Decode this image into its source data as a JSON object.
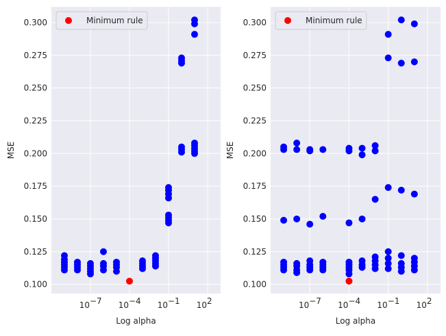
{
  "chart_data": [
    {
      "type": "scatter",
      "xlabel": "Log alpha",
      "ylabel": "MSE",
      "xscale": "log",
      "xlim": [
        1e-10,
        1000
      ],
      "ylim": [
        0.093,
        0.312
      ],
      "grid": true,
      "legend_position": "top-left",
      "x_ticks": [
        {
          "value": 1e-07,
          "base": "10",
          "exp": "−7"
        },
        {
          "value": 0.0001,
          "base": "10",
          "exp": "−4"
        },
        {
          "value": 0.1,
          "base": "10",
          "exp": "−1"
        },
        {
          "value": 100,
          "base": "10",
          "exp": "2"
        }
      ],
      "y_ticks": [
        "0.100",
        "0.125",
        "0.150",
        "0.175",
        "0.200",
        "0.225",
        "0.250",
        "0.275",
        "0.300"
      ],
      "series": [
        {
          "name": "",
          "color": "#0000ff",
          "points": [
            [
              1e-09,
              0.111
            ],
            [
              1e-09,
              0.113
            ],
            [
              1e-09,
              0.115
            ],
            [
              1e-09,
              0.117
            ],
            [
              1e-09,
              0.119
            ],
            [
              1e-09,
              0.122
            ],
            [
              1e-08,
              0.111
            ],
            [
              1e-08,
              0.113
            ],
            [
              1e-08,
              0.115
            ],
            [
              1e-08,
              0.117
            ],
            [
              1e-07,
              0.108
            ],
            [
              1e-07,
              0.11
            ],
            [
              1e-07,
              0.112
            ],
            [
              1e-07,
              0.114
            ],
            [
              1e-07,
              0.116
            ],
            [
              1e-06,
              0.111
            ],
            [
              1e-06,
              0.114
            ],
            [
              1e-06,
              0.116
            ],
            [
              1e-06,
              0.125
            ],
            [
              1e-05,
              0.11
            ],
            [
              1e-05,
              0.113
            ],
            [
              1e-05,
              0.115
            ],
            [
              1e-05,
              0.117
            ],
            [
              0.001,
              0.112
            ],
            [
              0.001,
              0.114
            ],
            [
              0.001,
              0.116
            ],
            [
              0.001,
              0.118
            ],
            [
              0.01,
              0.114
            ],
            [
              0.01,
              0.116
            ],
            [
              0.01,
              0.118
            ],
            [
              0.01,
              0.12
            ],
            [
              0.01,
              0.122
            ],
            [
              0.1,
              0.147
            ],
            [
              0.1,
              0.149
            ],
            [
              0.1,
              0.151
            ],
            [
              0.1,
              0.153
            ],
            [
              0.1,
              0.166
            ],
            [
              0.1,
              0.169
            ],
            [
              0.1,
              0.172
            ],
            [
              0.1,
              0.174
            ],
            [
              1,
              0.201
            ],
            [
              1,
              0.203
            ],
            [
              1,
              0.205
            ],
            [
              1,
              0.269
            ],
            [
              1,
              0.271
            ],
            [
              1,
              0.273
            ],
            [
              10,
              0.2
            ],
            [
              10,
              0.202
            ],
            [
              10,
              0.204
            ],
            [
              10,
              0.206
            ],
            [
              10,
              0.208
            ],
            [
              10,
              0.291
            ],
            [
              10,
              0.299
            ],
            [
              10,
              0.302
            ]
          ]
        },
        {
          "name": "Minimum rule",
          "color": "#ff0000",
          "points": [
            [
              0.0001,
              0.1025
            ]
          ]
        }
      ]
    },
    {
      "type": "scatter",
      "xlabel": "Log alpha",
      "ylabel": "MSE",
      "xscale": "log",
      "xlim": [
        1e-10,
        1000
      ],
      "ylim": [
        0.093,
        0.312
      ],
      "grid": true,
      "legend_position": "top-left",
      "x_ticks": [
        {
          "value": 1e-07,
          "base": "10",
          "exp": "−7"
        },
        {
          "value": 0.0001,
          "base": "10",
          "exp": "−4"
        },
        {
          "value": 0.1,
          "base": "10",
          "exp": "−1"
        },
        {
          "value": 100,
          "base": "10",
          "exp": "2"
        }
      ],
      "y_ticks": [
        "0.100",
        "0.125",
        "0.150",
        "0.175",
        "0.200",
        "0.225",
        "0.250",
        "0.275",
        "0.300"
      ],
      "series": [
        {
          "name": "",
          "color": "#0000ff",
          "points": [
            [
              1e-09,
              0.111
            ],
            [
              1e-09,
              0.113
            ],
            [
              1e-09,
              0.115
            ],
            [
              1e-09,
              0.117
            ],
            [
              1e-09,
              0.149
            ],
            [
              1e-09,
              0.203
            ],
            [
              1e-09,
              0.205
            ],
            [
              1e-08,
              0.109
            ],
            [
              1e-08,
              0.111
            ],
            [
              1e-08,
              0.114
            ],
            [
              1e-08,
              0.116
            ],
            [
              1e-08,
              0.15
            ],
            [
              1e-08,
              0.203
            ],
            [
              1e-08,
              0.208
            ],
            [
              1e-07,
              0.111
            ],
            [
              1e-07,
              0.113
            ],
            [
              1e-07,
              0.115
            ],
            [
              1e-07,
              0.118
            ],
            [
              1e-07,
              0.146
            ],
            [
              1e-07,
              0.202
            ],
            [
              1e-07,
              0.203
            ],
            [
              1e-06,
              0.111
            ],
            [
              1e-06,
              0.113
            ],
            [
              1e-06,
              0.115
            ],
            [
              1e-06,
              0.117
            ],
            [
              1e-06,
              0.152
            ],
            [
              1e-06,
              0.203
            ],
            [
              0.0001,
              0.108
            ],
            [
              0.0001,
              0.111
            ],
            [
              0.0001,
              0.113
            ],
            [
              0.0001,
              0.115
            ],
            [
              0.0001,
              0.117
            ],
            [
              0.0001,
              0.147
            ],
            [
              0.0001,
              0.202
            ],
            [
              0.0001,
              0.204
            ],
            [
              0.001,
              0.113
            ],
            [
              0.001,
              0.115
            ],
            [
              0.001,
              0.118
            ],
            [
              0.001,
              0.15
            ],
            [
              0.001,
              0.199
            ],
            [
              0.001,
              0.204
            ],
            [
              0.01,
              0.112
            ],
            [
              0.01,
              0.115
            ],
            [
              0.01,
              0.118
            ],
            [
              0.01,
              0.121
            ],
            [
              0.01,
              0.165
            ],
            [
              0.01,
              0.202
            ],
            [
              0.01,
              0.206
            ],
            [
              0.1,
              0.112
            ],
            [
              0.1,
              0.116
            ],
            [
              0.1,
              0.12
            ],
            [
              0.1,
              0.125
            ],
            [
              0.1,
              0.174
            ],
            [
              0.1,
              0.273
            ],
            [
              0.1,
              0.291
            ],
            [
              1,
              0.11
            ],
            [
              1,
              0.113
            ],
            [
              1,
              0.116
            ],
            [
              1,
              0.122
            ],
            [
              1,
              0.172
            ],
            [
              1,
              0.269
            ],
            [
              1,
              0.302
            ],
            [
              10,
              0.111
            ],
            [
              10,
              0.114
            ],
            [
              10,
              0.117
            ],
            [
              10,
              0.12
            ],
            [
              10,
              0.169
            ],
            [
              10,
              0.27
            ],
            [
              10,
              0.299
            ]
          ]
        },
        {
          "name": "Minimum rule",
          "color": "#ff0000",
          "points": [
            [
              0.0001,
              0.1025
            ]
          ]
        }
      ]
    }
  ]
}
